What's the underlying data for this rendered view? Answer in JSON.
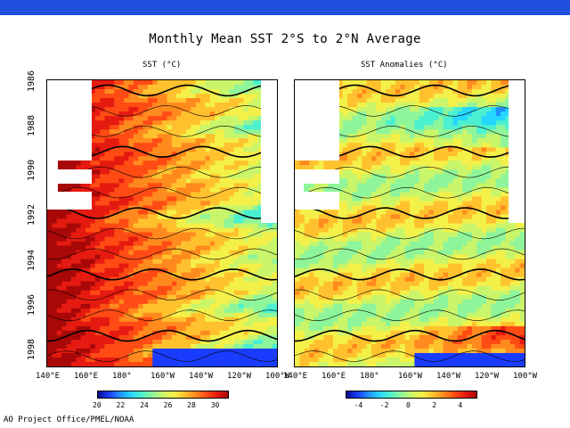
{
  "header": {
    "bar_color": "#1f4fdc"
  },
  "title": "Monthly Mean SST  2°S to 2°N Average",
  "credit": "AO Project Office/PMEL/NOAA",
  "chart_data": [
    {
      "type": "heatmap",
      "subtitle": "SST (°C)",
      "x_ticks": [
        "140°E",
        "160°E",
        "180°",
        "160°W",
        "140°W",
        "120°W",
        "100°W"
      ],
      "y_ticks": [
        "1986",
        "1988",
        "1990",
        "1992",
        "1994",
        "1996",
        "1998"
      ],
      "ylim": [
        1986,
        1998.8
      ],
      "colorbar": {
        "ticks": [
          "20",
          "22",
          "24",
          "26",
          "28",
          "30"
        ],
        "range": [
          20,
          31
        ]
      }
    },
    {
      "type": "heatmap",
      "subtitle": "SST Anomalies (°C)",
      "x_ticks": [
        "140°E",
        "160°E",
        "180°",
        "160°W",
        "140°W",
        "120°W",
        "100°W"
      ],
      "y_ticks": [
        "1986",
        "1988",
        "1990",
        "1992",
        "1994",
        "1996",
        "1998"
      ],
      "ylim": [
        1986,
        1998.8
      ],
      "colorbar": {
        "ticks": [
          "-4",
          "-2",
          "0",
          "2",
          "4"
        ],
        "range": [
          -5,
          5
        ]
      }
    }
  ]
}
